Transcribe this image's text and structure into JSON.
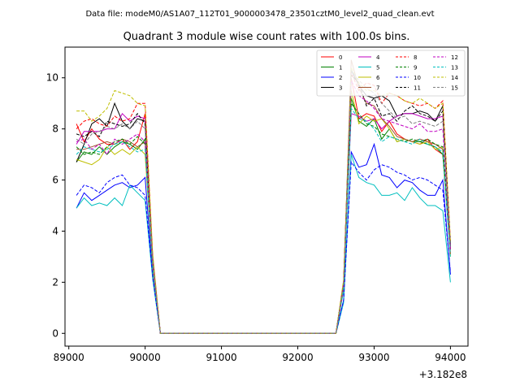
{
  "header": {
    "data_file": "Data file: modeM0/AS1A07_112T01_9000003478_23501cztM0_level2_quad_clean.evt"
  },
  "chart_data": {
    "type": "line",
    "title": "Quadrant 3 module wise count rates with 100.0s bins.",
    "xlabel": "",
    "ylabel": "",
    "x_offset_label": "+3.182e8",
    "xlim": [
      88950,
      94230
    ],
    "ylim": [
      -0.5,
      11.2
    ],
    "xticks": [
      89000,
      90000,
      91000,
      92000,
      93000,
      94000
    ],
    "yticks": [
      0,
      2,
      4,
      6,
      8,
      10
    ],
    "grid": false,
    "legend": {
      "placement": "top-right",
      "columns": 4
    },
    "x": [
      89100,
      89200,
      89300,
      89400,
      89500,
      89600,
      89700,
      89800,
      89900,
      90000,
      90100,
      90200,
      90300,
      90400,
      90500,
      90600,
      90700,
      90800,
      90900,
      91000,
      91100,
      91200,
      91300,
      91400,
      91500,
      91600,
      91700,
      91800,
      91900,
      92000,
      92100,
      92200,
      92300,
      92400,
      92500,
      92600,
      92700,
      92800,
      92900,
      93000,
      93100,
      93200,
      93300,
      93400,
      93500,
      93600,
      93700,
      93800,
      93900,
      94000
    ],
    "series": [
      {
        "name": "0",
        "color": "#ff0000",
        "dash": "solid",
        "values": [
          8.2,
          7.5,
          8.0,
          7.6,
          7.4,
          7.4,
          7.6,
          7.2,
          7.5,
          8.6,
          2.8,
          0,
          0,
          0,
          0,
          0,
          0,
          0,
          0,
          0,
          0,
          0,
          0,
          0,
          0,
          0,
          0,
          0,
          0,
          0,
          0,
          0,
          0,
          0,
          0,
          2.0,
          10.0,
          8.4,
          8.6,
          8.5,
          7.9,
          8.3,
          7.8,
          7.6,
          7.5,
          7.4,
          7.6,
          7.2,
          7.0,
          3.3
        ]
      },
      {
        "name": "1",
        "color": "#008000",
        "dash": "solid",
        "values": [
          6.7,
          7.1,
          7.0,
          7.3,
          7.0,
          7.3,
          7.5,
          7.4,
          7.2,
          7.6,
          2.6,
          0,
          0,
          0,
          0,
          0,
          0,
          0,
          0,
          0,
          0,
          0,
          0,
          0,
          0,
          0,
          0,
          0,
          0,
          0,
          0,
          0,
          0,
          0,
          0,
          1.8,
          9.2,
          8.3,
          8.1,
          8.4,
          7.6,
          8.0,
          7.5,
          7.6,
          7.5,
          7.5,
          7.4,
          7.3,
          7.0,
          3.1
        ]
      },
      {
        "name": "2",
        "color": "#0000ff",
        "dash": "solid",
        "values": [
          4.9,
          5.5,
          5.2,
          5.4,
          5.6,
          5.8,
          5.9,
          5.7,
          5.8,
          6.1,
          2.2,
          0,
          0,
          0,
          0,
          0,
          0,
          0,
          0,
          0,
          0,
          0,
          0,
          0,
          0,
          0,
          0,
          0,
          0,
          0,
          0,
          0,
          0,
          0,
          0,
          1.3,
          7.1,
          6.5,
          6.6,
          7.4,
          6.2,
          6.1,
          5.7,
          6.0,
          5.9,
          5.6,
          5.4,
          5.4,
          6.0,
          2.3
        ]
      },
      {
        "name": "3",
        "color": "#000000",
        "dash": "solid",
        "values": [
          6.7,
          7.4,
          8.2,
          8.4,
          8.1,
          9.0,
          8.3,
          8.0,
          8.4,
          8.3,
          2.9,
          0,
          0,
          0,
          0,
          0,
          0,
          0,
          0,
          0,
          0,
          0,
          0,
          0,
          0,
          0,
          0,
          0,
          0,
          0,
          0,
          0,
          0,
          0,
          0,
          2.0,
          10.3,
          9.7,
          9.3,
          9.2,
          9.3,
          9.1,
          8.5,
          8.6,
          8.6,
          8.7,
          8.6,
          8.3,
          8.9,
          3.4
        ]
      },
      {
        "name": "4",
        "color": "#c000c0",
        "dash": "solid",
        "values": [
          7.4,
          7.9,
          7.9,
          7.9,
          8.0,
          8.0,
          8.6,
          8.3,
          8.5,
          8.4,
          2.9,
          0,
          0,
          0,
          0,
          0,
          0,
          0,
          0,
          0,
          0,
          0,
          0,
          0,
          0,
          0,
          0,
          0,
          0,
          0,
          0,
          0,
          0,
          0,
          0,
          1.9,
          8.6,
          8.5,
          8.3,
          8.4,
          8.0,
          8.3,
          8.5,
          8.6,
          8.6,
          8.5,
          8.4,
          8.4,
          8.5,
          3.3
        ]
      },
      {
        "name": "5",
        "color": "#00bfbf",
        "dash": "solid",
        "values": [
          4.9,
          5.3,
          5.0,
          5.1,
          5.0,
          5.3,
          5.0,
          5.8,
          5.5,
          5.2,
          2.1,
          0,
          0,
          0,
          0,
          0,
          0,
          0,
          0,
          0,
          0,
          0,
          0,
          0,
          0,
          0,
          0,
          0,
          0,
          0,
          0,
          0,
          0,
          0,
          0,
          1.2,
          7.0,
          6.1,
          5.9,
          5.8,
          5.4,
          5.4,
          5.5,
          5.2,
          5.7,
          5.3,
          5.0,
          5.0,
          4.8,
          2.0
        ]
      },
      {
        "name": "6",
        "color": "#bfbf00",
        "dash": "solid",
        "values": [
          6.8,
          6.7,
          6.6,
          6.8,
          7.3,
          7.0,
          7.2,
          7.0,
          7.3,
          7.0,
          2.5,
          0,
          0,
          0,
          0,
          0,
          0,
          0,
          0,
          0,
          0,
          0,
          0,
          0,
          0,
          0,
          0,
          0,
          0,
          0,
          0,
          0,
          0,
          0,
          0,
          1.7,
          9.5,
          8.2,
          8.5,
          8.3,
          8.4,
          8.0,
          7.5,
          7.6,
          7.5,
          7.4,
          7.5,
          7.2,
          7.3,
          3.0
        ]
      },
      {
        "name": "7",
        "color": "#a0522d",
        "dash": "solid",
        "values": [
          7.2,
          7.2,
          7.3,
          7.4,
          7.5,
          7.4,
          7.6,
          7.5,
          7.3,
          7.5,
          2.7,
          0,
          0,
          0,
          0,
          0,
          0,
          0,
          0,
          0,
          0,
          0,
          0,
          0,
          0,
          0,
          0,
          0,
          0,
          0,
          0,
          0,
          0,
          0,
          0,
          1.9,
          10.7,
          9.6,
          9.0,
          8.9,
          8.4,
          8.1,
          7.7,
          7.6,
          7.5,
          7.6,
          7.5,
          7.4,
          7.2,
          3.1
        ]
      },
      {
        "name": "8",
        "color": "#ff0000",
        "dash": "dashed",
        "values": [
          8.0,
          8.3,
          8.4,
          8.2,
          8.1,
          8.5,
          8.3,
          8.4,
          9.0,
          9.0,
          3.0,
          0,
          0,
          0,
          0,
          0,
          0,
          0,
          0,
          0,
          0,
          0,
          0,
          0,
          0,
          0,
          0,
          0,
          0,
          0,
          0,
          0,
          0,
          0,
          0,
          2.0,
          10.2,
          9.5,
          9.8,
          9.7,
          9.0,
          9.4,
          9.3,
          9.1,
          9.0,
          8.9,
          9.0,
          8.8,
          9.1,
          3.6
        ]
      },
      {
        "name": "9",
        "color": "#008000",
        "dash": "dashed",
        "values": [
          7.3,
          7.0,
          7.1,
          7.0,
          7.3,
          7.5,
          7.6,
          7.4,
          7.7,
          7.4,
          2.7,
          0,
          0,
          0,
          0,
          0,
          0,
          0,
          0,
          0,
          0,
          0,
          0,
          0,
          0,
          0,
          0,
          0,
          0,
          0,
          0,
          0,
          0,
          0,
          0,
          1.8,
          9.0,
          8.6,
          8.2,
          8.1,
          7.8,
          7.7,
          7.6,
          7.5,
          7.6,
          7.5,
          7.6,
          7.4,
          7.3,
          3.2
        ]
      },
      {
        "name": "10",
        "color": "#0000ff",
        "dash": "dashed",
        "values": [
          5.4,
          5.8,
          5.7,
          5.5,
          5.9,
          6.1,
          6.2,
          5.8,
          5.7,
          5.4,
          2.2,
          0,
          0,
          0,
          0,
          0,
          0,
          0,
          0,
          0,
          0,
          0,
          0,
          0,
          0,
          0,
          0,
          0,
          0,
          0,
          0,
          0,
          0,
          0,
          0,
          1.3,
          6.7,
          6.3,
          6.0,
          6.4,
          6.6,
          6.5,
          6.3,
          6.2,
          6.0,
          6.1,
          6.0,
          5.8,
          5.6,
          2.4
        ]
      },
      {
        "name": "11",
        "color": "#000000",
        "dash": "dashed",
        "values": [
          7.8,
          7.7,
          7.9,
          7.7,
          8.3,
          8.2,
          8.1,
          8.2,
          8.6,
          8.2,
          2.9,
          0,
          0,
          0,
          0,
          0,
          0,
          0,
          0,
          0,
          0,
          0,
          0,
          0,
          0,
          0,
          0,
          0,
          0,
          0,
          0,
          0,
          0,
          0,
          0,
          2.0,
          10.1,
          9.8,
          8.9,
          9.2,
          8.5,
          8.6,
          8.3,
          8.7,
          8.9,
          8.6,
          8.5,
          8.3,
          8.7,
          3.5
        ]
      },
      {
        "name": "12",
        "color": "#c000c0",
        "dash": "dashed",
        "values": [
          7.5,
          7.6,
          7.2,
          7.4,
          7.0,
          7.6,
          7.4,
          7.6,
          7.8,
          7.5,
          2.7,
          0,
          0,
          0,
          0,
          0,
          0,
          0,
          0,
          0,
          0,
          0,
          0,
          0,
          0,
          0,
          0,
          0,
          0,
          0,
          0,
          0,
          0,
          0,
          0,
          1.8,
          9.9,
          9.3,
          9.1,
          8.8,
          8.4,
          8.3,
          8.2,
          8.1,
          8.0,
          8.2,
          7.9,
          7.9,
          8.0,
          3.2
        ]
      },
      {
        "name": "13",
        "color": "#00bfbf",
        "dash": "dashed",
        "values": [
          7.0,
          7.3,
          7.2,
          7.1,
          7.2,
          7.4,
          7.5,
          7.3,
          7.1,
          7.2,
          2.6,
          0,
          0,
          0,
          0,
          0,
          0,
          0,
          0,
          0,
          0,
          0,
          0,
          0,
          0,
          0,
          0,
          0,
          0,
          0,
          0,
          0,
          0,
          0,
          0,
          1.7,
          8.8,
          8.4,
          8.3,
          8.0,
          7.5,
          7.7,
          7.6,
          7.5,
          7.4,
          7.6,
          7.4,
          7.3,
          7.1,
          3.0
        ]
      },
      {
        "name": "14",
        "color": "#bfbf00",
        "dash": "dashed",
        "values": [
          8.7,
          8.7,
          8.3,
          8.5,
          8.8,
          9.5,
          9.4,
          9.3,
          9.0,
          8.9,
          3.1,
          0,
          0,
          0,
          0,
          0,
          0,
          0,
          0,
          0,
          0,
          0,
          0,
          0,
          0,
          0,
          0,
          0,
          0,
          0,
          0,
          0,
          0,
          0,
          0,
          2.1,
          10.4,
          9.8,
          9.5,
          9.5,
          9.3,
          9.4,
          9.3,
          9.1,
          9.0,
          9.2,
          9.0,
          8.8,
          9.0,
          3.6
        ]
      },
      {
        "name": "15",
        "color": "#808080",
        "dash": "dashed",
        "values": [
          7.6,
          7.4,
          7.8,
          7.9,
          8.1,
          8.0,
          8.2,
          8.0,
          8.3,
          8.0,
          2.8,
          0,
          0,
          0,
          0,
          0,
          0,
          0,
          0,
          0,
          0,
          0,
          0,
          0,
          0,
          0,
          0,
          0,
          0,
          0,
          0,
          0,
          0,
          0,
          0,
          1.9,
          10.3,
          9.9,
          9.6,
          9.4,
          9.0,
          8.7,
          8.4,
          8.5,
          8.2,
          8.3,
          8.2,
          8.1,
          8.3,
          3.4
        ]
      }
    ]
  }
}
